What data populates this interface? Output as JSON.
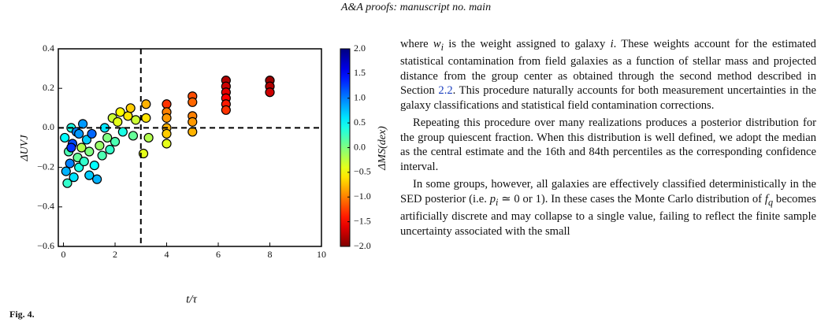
{
  "header": {
    "title": "A&A proofs: manuscript no. main"
  },
  "chart_data": {
    "type": "scatter",
    "xlabel": "t/τ",
    "ylabel": "ΔUVJ",
    "colorbar_label": "ΔMS(dex)",
    "xlim": [
      -0.2,
      10
    ],
    "ylim": [
      -0.6,
      0.4
    ],
    "xticks": [
      0,
      2,
      4,
      6,
      8,
      10
    ],
    "yticks": [
      0.4,
      0.2,
      {
        "value": 0,
        "label": "0.0"
      },
      {
        "value": -0.2,
        "label": "−0.2"
      },
      {
        "value": -0.4,
        "label": "−0.4"
      },
      {
        "value": -0.6,
        "label": "−0.6"
      }
    ],
    "colormap": "jet_r",
    "clim": [
      -2,
      2
    ],
    "cticks": [
      {
        "value": 2,
        "label": "2.0"
      },
      1.5,
      {
        "value": 1,
        "label": "1.0"
      },
      0.5,
      {
        "value": 0,
        "label": "0.0"
      },
      {
        "value": -0.5,
        "label": "−0.5"
      },
      {
        "value": -1,
        "label": "−1.0"
      },
      {
        "value": -1.5,
        "label": "−1.5"
      },
      {
        "value": -2,
        "label": "−2.0"
      }
    ],
    "vlines": [
      3
    ],
    "hlines": [
      0
    ],
    "x": [
      0.05,
      0.1,
      0.15,
      0.2,
      0.25,
      0.3,
      0.35,
      0.4,
      0.5,
      0.55,
      0.6,
      0.7,
      0.75,
      0.8,
      0.9,
      1.0,
      1.1,
      1.2,
      1.3,
      1.4,
      1.5,
      1.6,
      1.7,
      1.8,
      1.9,
      2.0,
      2.1,
      2.2,
      2.3,
      2.5,
      2.6,
      2.7,
      2.8,
      3.2,
      3.2,
      3.3,
      3.1,
      0.3,
      0.6,
      1.0,
      4,
      4,
      4,
      4,
      4,
      4,
      5,
      5,
      5,
      5,
      5,
      6.3,
      6.3,
      6.3,
      6.3,
      6.3,
      6.3,
      8,
      8,
      8
    ],
    "values": [
      -0.05,
      -0.22,
      -0.28,
      -0.12,
      -0.18,
      0.0,
      -0.08,
      -0.25,
      -0.02,
      -0.15,
      -0.2,
      -0.1,
      0.02,
      -0.17,
      -0.06,
      -0.12,
      -0.03,
      -0.19,
      -0.26,
      -0.09,
      -0.14,
      0.0,
      -0.05,
      -0.11,
      0.05,
      -0.07,
      0.03,
      0.08,
      -0.02,
      0.06,
      0.1,
      -0.04,
      0.04,
      0.12,
      0.05,
      -0.05,
      -0.13,
      -0.1,
      -0.03,
      -0.24,
      0.12,
      0.08,
      0.05,
      0.0,
      -0.03,
      -0.08,
      0.16,
      0.13,
      0.06,
      0.03,
      -0.02,
      0.24,
      0.21,
      0.18,
      0.15,
      0.12,
      0.09,
      0.24,
      0.21,
      0.18
    ],
    "c": [
      0.5,
      0.8,
      0.3,
      0.2,
      1.0,
      0.4,
      1.2,
      0.6,
      1.0,
      0.1,
      0.4,
      -0.2,
      0.9,
      0.3,
      0.7,
      0.0,
      1.1,
      0.5,
      0.8,
      -0.1,
      0.2,
      0.6,
      0.0,
      0.3,
      -0.3,
      0.2,
      -0.4,
      -0.5,
      0.4,
      -0.6,
      -0.7,
      0.1,
      -0.3,
      -0.8,
      -0.6,
      -0.2,
      -0.4,
      1.3,
      0.9,
      0.7,
      -1.3,
      -1.0,
      -0.9,
      -0.8,
      -0.7,
      -0.4,
      -1.2,
      -1.1,
      -1.0,
      -0.9,
      -0.8,
      -1.8,
      -1.7,
      -1.6,
      -1.5,
      -1.4,
      -1.3,
      -1.9,
      -1.8,
      -1.7
    ]
  },
  "caption": {
    "label": "Fig. 4."
  },
  "paragraphs": [
    [
      "where ",
      "w",
      "i",
      " is the weight assigned to galaxy ",
      "i",
      ". These weights account for the estimated statistical contamination from field galaxies as a function of stellar mass and projected distance from the group center as obtained through the second method described in Section ",
      "2.2",
      ". This procedure naturally accounts for both measurement uncertainties in the galaxy classifications and statistical field contamination corrections."
    ],
    [
      "Repeating this procedure over many realizations produces a posterior distribution for the group quiescent fraction. When this distribution is well defined, we adopt the median as the central estimate and the 16th and 84th percentiles as the corresponding confidence interval."
    ],
    [
      "In some groups, however, all galaxies are effectively classified deterministically in the SED posterior (i.e. ",
      "p",
      "i",
      " ≃ 0 or 1). In these cases the Monte Carlo distribution of ",
      "f",
      "q",
      " becomes artificially discrete and may collapse to a single value, failing to reflect the finite sample uncertainty associated with the small"
    ]
  ]
}
